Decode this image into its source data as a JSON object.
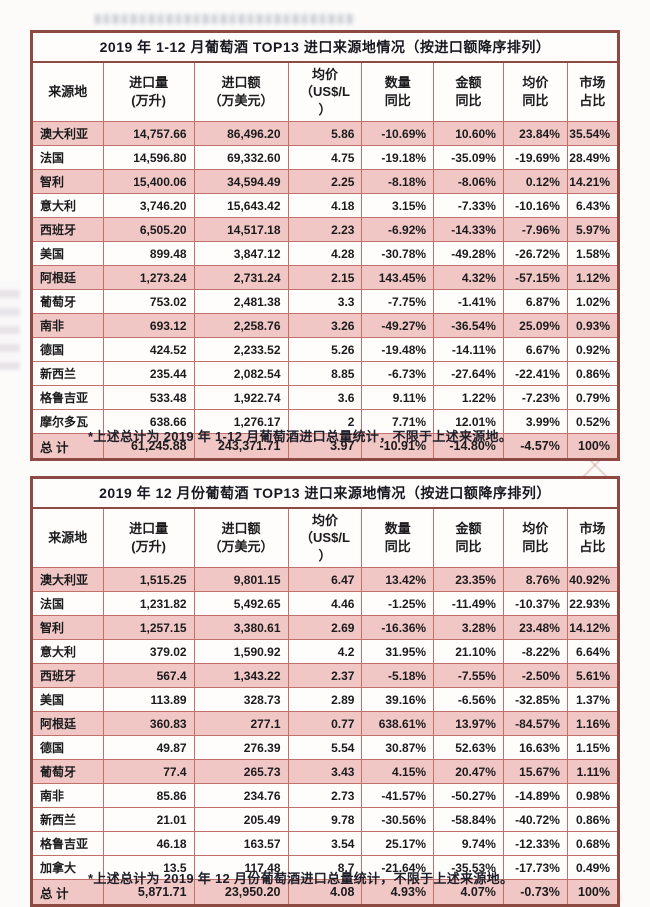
{
  "colors": {
    "row_highlight": "#f1c7c5",
    "border_inner": "#c1716a",
    "border_outer": "#8c4a43",
    "text": "#1b1b1d"
  },
  "columns": [
    "来源地",
    "进口量\n(万升)",
    "进口额\n（万美元）",
    "均价\n（US$/L\n）",
    "数量\n同比",
    "金额\n同比",
    "均价\n同比",
    "市场\n占比"
  ],
  "column_keys": [
    "source",
    "import-volume",
    "import-value",
    "avg-price",
    "qty-yoy",
    "value-yoy",
    "price-yoy",
    "market-share"
  ],
  "table1": {
    "title": "2019 年 1-12 月葡萄酒 TOP13 进口来源地情况（按进口额降序排列）",
    "rows": [
      {
        "country": "澳大利亚",
        "values": [
          "14,757.66",
          "86,496.20",
          "5.86",
          "-10.69%",
          "10.60%",
          "23.84%",
          "35.54%"
        ],
        "highlight": true
      },
      {
        "country": "法国",
        "values": [
          "14,596.80",
          "69,332.60",
          "4.75",
          "-19.18%",
          "-35.09%",
          "-19.69%",
          "28.49%"
        ],
        "highlight": false
      },
      {
        "country": "智利",
        "values": [
          "15,400.06",
          "34,594.49",
          "2.25",
          "-8.18%",
          "-8.06%",
          "0.12%",
          "14.21%"
        ],
        "highlight": true
      },
      {
        "country": "意大利",
        "values": [
          "3,746.20",
          "15,643.42",
          "4.18",
          "3.15%",
          "-7.33%",
          "-10.16%",
          "6.43%"
        ],
        "highlight": false
      },
      {
        "country": "西班牙",
        "values": [
          "6,505.20",
          "14,517.18",
          "2.23",
          "-6.92%",
          "-14.33%",
          "-7.96%",
          "5.97%"
        ],
        "highlight": true
      },
      {
        "country": "美国",
        "values": [
          "899.48",
          "3,847.12",
          "4.28",
          "-30.78%",
          "-49.28%",
          "-26.72%",
          "1.58%"
        ],
        "highlight": false
      },
      {
        "country": "阿根廷",
        "values": [
          "1,273.24",
          "2,731.24",
          "2.15",
          "143.45%",
          "4.32%",
          "-57.15%",
          "1.12%"
        ],
        "highlight": true
      },
      {
        "country": "葡萄牙",
        "values": [
          "753.02",
          "2,481.38",
          "3.3",
          "-7.75%",
          "-1.41%",
          "6.87%",
          "1.02%"
        ],
        "highlight": false
      },
      {
        "country": "南非",
        "values": [
          "693.12",
          "2,258.76",
          "3.26",
          "-49.27%",
          "-36.54%",
          "25.09%",
          "0.93%"
        ],
        "highlight": true
      },
      {
        "country": "德国",
        "values": [
          "424.52",
          "2,233.52",
          "5.26",
          "-19.48%",
          "-14.11%",
          "6.67%",
          "0.92%"
        ],
        "highlight": false
      },
      {
        "country": "新西兰",
        "values": [
          "235.44",
          "2,082.54",
          "8.85",
          "-6.73%",
          "-27.64%",
          "-22.41%",
          "0.86%"
        ],
        "highlight": false
      },
      {
        "country": "格鲁吉亚",
        "values": [
          "533.48",
          "1,922.74",
          "3.6",
          "9.11%",
          "1.22%",
          "-7.23%",
          "0.79%"
        ],
        "highlight": false
      },
      {
        "country": "摩尔多瓦",
        "values": [
          "638.66",
          "1,276.17",
          "2",
          "7.71%",
          "12.01%",
          "3.99%",
          "0.52%"
        ],
        "highlight": false
      }
    ],
    "total": {
      "label": "总  计",
      "values": [
        "61,245.88",
        "243,371.71",
        "3.97",
        "-10.91%",
        "-14.80%",
        "-4.57%",
        "100%"
      ]
    },
    "footnote": "*上述总计为 2019 年 1-12 月葡萄酒进口总量统计，不限于上述来源地。"
  },
  "table2": {
    "title": "2019 年 12 月份葡萄酒 TOP13 进口来源地情况（按进口额降序排列）",
    "rows": [
      {
        "country": "澳大利亚",
        "values": [
          "1,515.25",
          "9,801.15",
          "6.47",
          "13.42%",
          "23.35%",
          "8.76%",
          "40.92%"
        ],
        "highlight": true
      },
      {
        "country": "法国",
        "values": [
          "1,231.82",
          "5,492.65",
          "4.46",
          "-1.25%",
          "-11.49%",
          "-10.37%",
          "22.93%"
        ],
        "highlight": false
      },
      {
        "country": "智利",
        "values": [
          "1,257.15",
          "3,380.61",
          "2.69",
          "-16.36%",
          "3.28%",
          "23.48%",
          "14.12%"
        ],
        "highlight": true
      },
      {
        "country": "意大利",
        "values": [
          "379.02",
          "1,590.92",
          "4.2",
          "31.95%",
          "21.10%",
          "-8.22%",
          "6.64%"
        ],
        "highlight": false
      },
      {
        "country": "西班牙",
        "values": [
          "567.4",
          "1,343.22",
          "2.37",
          "-5.18%",
          "-7.55%",
          "-2.50%",
          "5.61%"
        ],
        "highlight": true
      },
      {
        "country": "美国",
        "values": [
          "113.89",
          "328.73",
          "2.89",
          "39.16%",
          "-6.56%",
          "-32.85%",
          "1.37%"
        ],
        "highlight": false
      },
      {
        "country": "阿根廷",
        "values": [
          "360.83",
          "277.1",
          "0.77",
          "638.61%",
          "13.97%",
          "-84.57%",
          "1.16%"
        ],
        "highlight": true
      },
      {
        "country": "德国",
        "values": [
          "49.87",
          "276.39",
          "5.54",
          "30.87%",
          "52.63%",
          "16.63%",
          "1.15%"
        ],
        "highlight": false
      },
      {
        "country": "葡萄牙",
        "values": [
          "77.4",
          "265.73",
          "3.43",
          "4.15%",
          "20.47%",
          "15.67%",
          "1.11%"
        ],
        "highlight": true
      },
      {
        "country": "南非",
        "values": [
          "85.86",
          "234.76",
          "2.73",
          "-41.57%",
          "-50.27%",
          "-14.89%",
          "0.98%"
        ],
        "highlight": false
      },
      {
        "country": "新西兰",
        "values": [
          "21.01",
          "205.49",
          "9.78",
          "-30.56%",
          "-58.84%",
          "-40.72%",
          "0.86%"
        ],
        "highlight": false
      },
      {
        "country": "格鲁吉亚",
        "values": [
          "46.18",
          "163.57",
          "3.54",
          "25.17%",
          "9.74%",
          "-12.33%",
          "0.68%"
        ],
        "highlight": false
      },
      {
        "country": "加拿大",
        "values": [
          "13.5",
          "117.48",
          "8.7",
          "-21.64%",
          "-35.53%",
          "-17.73%",
          "0.49%"
        ],
        "highlight": false
      }
    ],
    "total": {
      "label": "总  计",
      "values": [
        "5,871.71",
        "23,950.20",
        "4.08",
        "4.93%",
        "4.07%",
        "-0.73%",
        "100%"
      ]
    },
    "footnote": "*上述总计为 2019 年 12 月份葡萄酒进口总量统计，不限于上述来源地。"
  }
}
